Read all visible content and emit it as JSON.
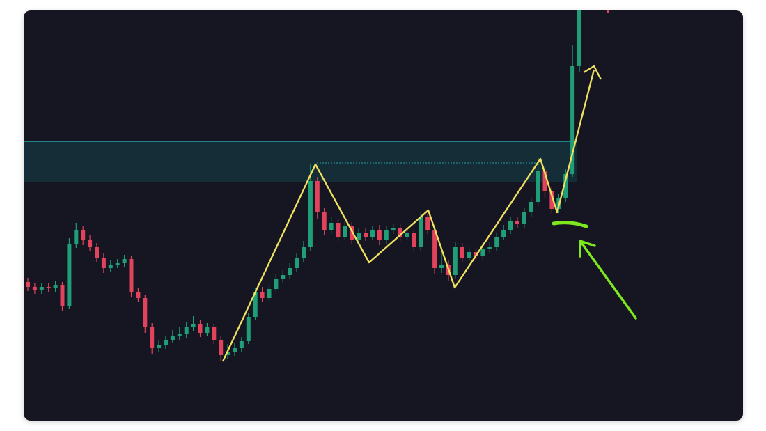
{
  "chart_data": {
    "type": "candlestick",
    "open": [
      199,
      192,
      188,
      192,
      190,
      194,
      164,
      254,
      274,
      259,
      249,
      234,
      219,
      224,
      226,
      232,
      184,
      176,
      134,
      104,
      109,
      116,
      122,
      124,
      134,
      139,
      126,
      134,
      116,
      94,
      99,
      104,
      114,
      149,
      184,
      176,
      189,
      204,
      209,
      219,
      234,
      249,
      344,
      299,
      274,
      284,
      264,
      279,
      259,
      269,
      264,
      274,
      259,
      274,
      276,
      264,
      269,
      249,
      292,
      274,
      219,
      224,
      209,
      249,
      234,
      242,
      236,
      246,
      249,
      264,
      274,
      286,
      282,
      299,
      314,
      359,
      329,
      304,
      319,
      354,
      509
    ],
    "high": [
      205,
      198,
      198,
      197,
      200,
      199,
      262,
      284,
      279,
      266,
      255,
      240,
      230,
      232,
      238,
      236,
      190,
      180,
      140,
      116,
      122,
      130,
      134,
      141,
      150,
      145,
      140,
      139,
      121,
      110,
      111,
      120,
      155,
      190,
      192,
      195,
      210,
      216,
      226,
      241,
      258,
      368,
      350,
      305,
      292,
      290,
      286,
      285,
      276,
      277,
      280,
      281,
      280,
      283,
      282,
      276,
      274,
      300,
      297,
      280,
      240,
      231,
      256,
      255,
      249,
      248,
      252,
      256,
      270,
      281,
      292,
      293,
      305,
      320,
      378,
      365,
      335,
      326,
      362,
      540,
      589
    ],
    "low": [
      186,
      182,
      182,
      185,
      184,
      158,
      160,
      248,
      252,
      243,
      228,
      212,
      214,
      219,
      221,
      178,
      170,
      126,
      96,
      98,
      103,
      111,
      116,
      119,
      128,
      120,
      121,
      110,
      86,
      88,
      93,
      98,
      110,
      144,
      170,
      172,
      184,
      198,
      203,
      214,
      228,
      244,
      290,
      266,
      268,
      258,
      259,
      253,
      254,
      258,
      259,
      252,
      254,
      268,
      258,
      259,
      243,
      244,
      268,
      210,
      212,
      200,
      204,
      228,
      229,
      230,
      231,
      240,
      244,
      259,
      268,
      276,
      277,
      293,
      309,
      320,
      298,
      298,
      314,
      350,
      500
    ],
    "close": [
      192,
      188,
      192,
      190,
      194,
      164,
      254,
      274,
      259,
      249,
      234,
      219,
      224,
      226,
      232,
      184,
      176,
      134,
      104,
      109,
      116,
      122,
      124,
      134,
      139,
      126,
      134,
      116,
      94,
      99,
      104,
      114,
      149,
      184,
      176,
      189,
      204,
      209,
      219,
      234,
      249,
      344,
      299,
      274,
      284,
      264,
      279,
      259,
      269,
      264,
      274,
      259,
      274,
      276,
      264,
      269,
      249,
      292,
      274,
      219,
      224,
      209,
      249,
      234,
      242,
      236,
      246,
      249,
      264,
      274,
      286,
      282,
      299,
      314,
      359,
      329,
      304,
      319,
      354,
      509,
      589
    ],
    "ylim": [
      0,
      589
    ],
    "up_color": "#1f9e78",
    "down_color": "#e0435b"
  }
}
